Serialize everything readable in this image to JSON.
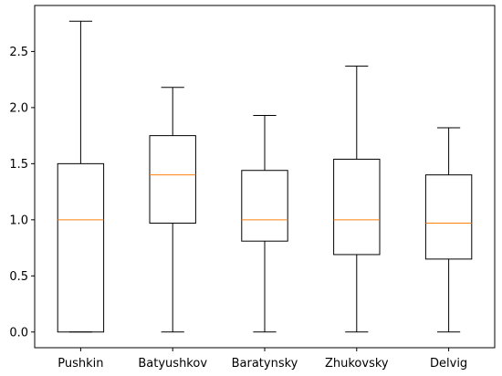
{
  "chart_data": {
    "type": "boxplot",
    "categories": [
      "Pushkin",
      "Batyushkov",
      "Baratynsky",
      "Zhukovsky",
      "Delvig"
    ],
    "boxes": [
      {
        "label": "Pushkin",
        "whisker_low": 0.0,
        "q1": 0.0,
        "median": 1.0,
        "q3": 1.5,
        "whisker_high": 2.77
      },
      {
        "label": "Batyushkov",
        "whisker_low": 0.0,
        "q1": 0.97,
        "median": 1.4,
        "q3": 1.75,
        "whisker_high": 2.18
      },
      {
        "label": "Baratynsky",
        "whisker_low": 0.0,
        "q1": 0.81,
        "median": 1.0,
        "q3": 1.44,
        "whisker_high": 1.93
      },
      {
        "label": "Zhukovsky",
        "whisker_low": 0.0,
        "q1": 0.69,
        "median": 1.0,
        "q3": 1.54,
        "whisker_high": 2.37
      },
      {
        "label": "Delvig",
        "whisker_low": 0.0,
        "q1": 0.65,
        "median": 0.97,
        "q3": 1.4,
        "whisker_high": 1.82
      }
    ],
    "yticks": [
      0.0,
      0.5,
      1.0,
      1.5,
      2.0,
      2.5
    ],
    "ytick_labels": [
      "0.0",
      "0.5",
      "1.0",
      "1.5",
      "2.0",
      "2.5"
    ],
    "ylim": [
      -0.14,
      2.91
    ],
    "title": "",
    "xlabel": "",
    "ylabel": "",
    "grid": false,
    "colors": {
      "box": "#000000",
      "median": "#ff7f0e",
      "background": "#ffffff"
    }
  }
}
